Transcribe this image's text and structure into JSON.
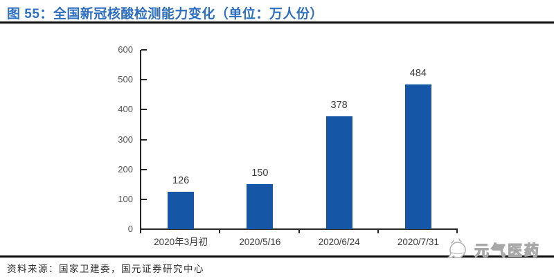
{
  "header": {
    "title": "图 55：全国新冠核酸检测能力变化（单位：万人份）",
    "accent_color": "#2D6FC0"
  },
  "chart_data": {
    "type": "bar",
    "title": "全国新冠核酸检测能力变化",
    "unit": "万人份",
    "categories": [
      "2020年3月初",
      "2020/5/16",
      "2020/6/24",
      "2020/7/31"
    ],
    "values": [
      126,
      150,
      378,
      484
    ],
    "data_labels": [
      "126",
      "150",
      "378",
      "484"
    ],
    "xlabel": "",
    "ylabel": "",
    "ylim": [
      0,
      600
    ],
    "yticks": [
      0,
      100,
      200,
      300,
      400,
      500,
      600
    ],
    "grid": false,
    "legend": "none",
    "bar_color": "#1656A6",
    "axis_color": "#262626",
    "tick_label_color": "#555555",
    "value_label_color": "#3c3c3c"
  },
  "footer": {
    "source": "资料来源：国家卫建委，国元证券研究中心",
    "brand": "元气医药"
  }
}
